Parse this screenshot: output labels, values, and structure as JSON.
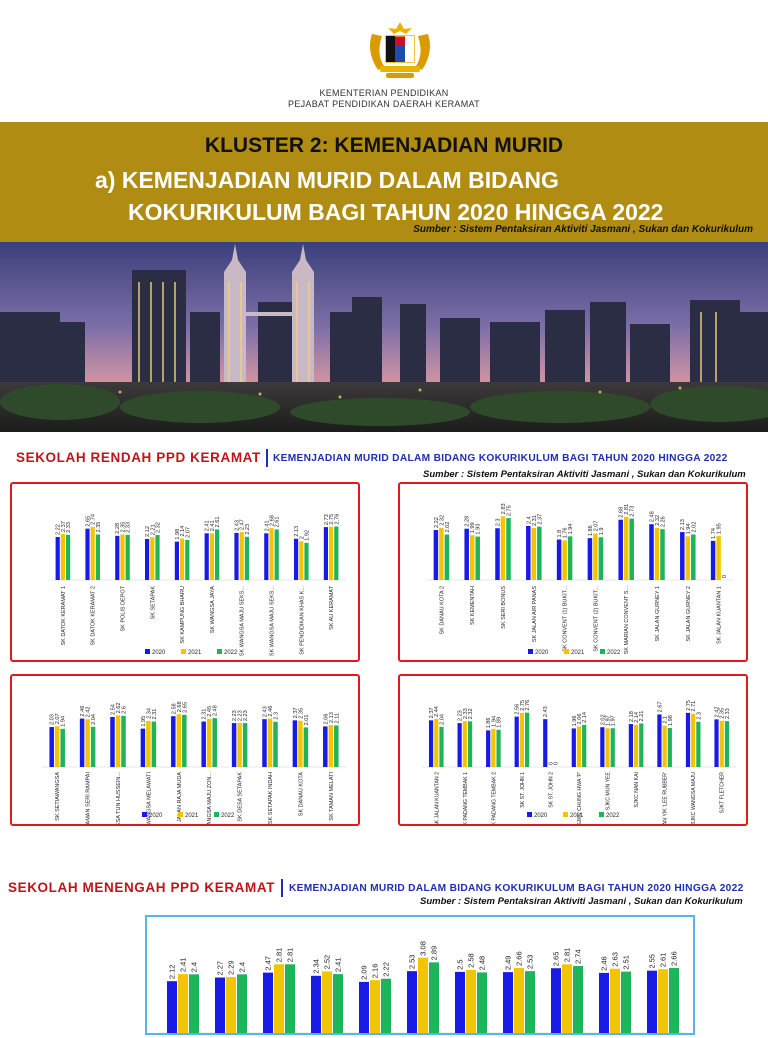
{
  "header": {
    "line1": "KEMENTERIAN PENDIDIKAN",
    "line2": "PEJABAT PENDIDIKAN DAERAH KERAMAT"
  },
  "banner": {
    "kluster": "KLUSTER 2: KEMENJADIAN MURID",
    "subtitle_line1": "a) KEMENJADIAN MURID DALAM BIDANG",
    "subtitle_line2": "KOKURIKULUM BAGI TAHUN 2020 HINGGA 2022",
    "source": "Sumber : Sistem Pentaksiran Aktiviti Jasmani , Sukan dan Kokurikulum"
  },
  "sections": [
    {
      "title": "SEKOLAH RENDAH PPD KERAMAT",
      "subtitle": "KEMENJADIAN MURID DALAM BIDANG KOKURIKULUM BAGI TAHUN 2020 HINGGA 2022",
      "source": "Sumber : Sistem Pentaksiran Aktiviti Jasmani , Sukan dan Kokurikulum"
    },
    {
      "title": "SEKOLAH MENENGAH PPD KERAMAT",
      "subtitle": "KEMENJADIAN MURID DALAM BIDANG KOKURIKULUM BAGI TAHUN 2020 HINGGA 2022",
      "source": "Sumber : Sistem Pentaksiran Aktiviti Jasmani , Sukan dan Kokurikulum"
    }
  ],
  "colors": {
    "2020": "#1a1ae6",
    "2021": "#f2c500",
    "2022": "#1fb35a",
    "red_border": "#e0191f",
    "blue_border": "#5ab4e6"
  },
  "chart_data": [
    {
      "type": "bar",
      "categories": [
        "SK DATOK KERAMAT 1",
        "SK DATOK KERAMAT 2",
        "SK POLIS DEPOT",
        "SK SETAPAK",
        "SK KAMPUNG BHARU",
        "SK WANGSA JAYA",
        "SK WANGSA MAJU SEKS...",
        "SK WANGSA MAJU SEKS...",
        "SK PENDIDIKAN KHAS K...",
        "SK AU KERAMAT"
      ],
      "series": [
        {
          "name": "2020",
          "values": [
            2.22,
            2.65,
            2.28,
            2.12,
            1.98,
            2.41,
            2.43,
            2.41,
            2.13,
            2.73
          ]
        },
        {
          "name": "2021",
          "values": [
            2.37,
            2.74,
            2.35,
            2.21,
            2.14,
            2.41,
            2.47,
            2.68,
            2.0,
            2.75
          ]
        },
        {
          "name": "2022",
          "values": [
            2.33,
            2.35,
            2.33,
            2.32,
            2.07,
            2.61,
            2.23,
            2.61,
            1.92,
            2.76
          ]
        }
      ]
    },
    {
      "type": "bar",
      "categories": [
        "SK DANAU KOTA 2",
        "SK KEMENTAH",
        "SK SERI BONUS",
        "SK JALAN AIR PANAS",
        "SK CONVENT (1) BUKIT...",
        "SK CONVENT (2) BUKIT...",
        "SK MARIAN CONVENT S...",
        "SK JALAN GURNEY 1",
        "SK JALAN GURNEY 2",
        "SK JALAN KUANTAN 1"
      ],
      "series": [
        {
          "name": "2020",
          "values": [
            2.22,
            2.28,
            2.3,
            2.4,
            1.8,
            1.86,
            2.68,
            2.48,
            2.13,
            1.74
          ]
        },
        {
          "name": "2021",
          "values": [
            2.32,
            1.99,
            2.83,
            2.31,
            1.76,
            2.07,
            2.81,
            2.32,
            1.94,
            1.95
          ]
        },
        {
          "name": "2022",
          "values": [
            2.02,
            1.93,
            2.75,
            2.37,
            1.94,
            1.9,
            2.73,
            2.26,
            2.02,
            0
          ]
        }
      ]
    },
    {
      "type": "bar",
      "categories": [
        "SK SETIAWANGSA",
        "SK TAMAN SERI RAMPAI",
        "SK DESA TUN HUSSEIN...",
        "SK WANGSA MELAWATI",
        "SK JALAN RAJA MUDA",
        "SK WANGSA MAJU ZON...",
        "SK DESA SETAPAK",
        "SK SETAPAK INDAH",
        "SK DANAU KOTA",
        "SK TAMAN MELATI"
      ],
      "series": [
        {
          "name": "2020",
          "values": [
            2.03,
            2.46,
            2.54,
            1.95,
            2.58,
            2.31,
            2.23,
            2.43,
            2.37,
            2.06
          ]
        },
        {
          "name": "2021",
          "values": [
            2.07,
            2.42,
            2.62,
            2.34,
            2.68,
            2.45,
            2.23,
            2.46,
            2.35,
            2.13
          ]
        },
        {
          "name": "2022",
          "values": [
            1.94,
            2.04,
            2.6,
            2.31,
            2.65,
            2.48,
            2.23,
            2.3,
            2.01,
            2.11
          ]
        }
      ]
    },
    {
      "type": "bar",
      "categories": [
        "SK JALAN KUANTAN 2",
        "SK PADANG TEMBAK 1",
        "SK PADANG TEMBAK 2",
        "SK ST. JOHN 1",
        "SK ST. JOHN 2",
        "SJKC CHUNG HWA 'P'",
        "SJKC MUN YEE",
        "SJKC NAN KAI",
        "SJKC NAN YIK 'LEE RUBBER'",
        "SJKC WANGSA MAJU",
        "SJKT FLETCHER"
      ],
      "series": [
        {
          "name": "2020",
          "values": [
            2.37,
            2.23,
            1.86,
            2.56,
            2.43,
            1.96,
            2.02,
            2.18,
            2.67,
            2.75,
            2.42
          ]
        },
        {
          "name": "2021",
          "values": [
            2.44,
            2.33,
            1.94,
            2.75,
            0,
            2.06,
            1.97,
            2.14,
            2.1,
            2.71,
            2.35
          ]
        },
        {
          "name": "2022",
          "values": [
            2.04,
            2.32,
            1.89,
            2.76,
            0,
            2.14,
            1.97,
            2.21,
            1.98,
            2.3,
            2.33
          ]
        }
      ]
    },
    {
      "type": "bar",
      "categories": [
        "",
        "",
        "",
        "",
        "",
        "",
        "",
        "",
        "",
        "",
        ""
      ],
      "series": [
        {
          "name": "2020",
          "values": [
            2.12,
            2.27,
            2.47,
            2.34,
            2.09,
            2.53,
            2.5,
            2.49,
            2.65,
            2.46,
            2.55
          ]
        },
        {
          "name": "2021",
          "values": [
            2.41,
            2.29,
            2.81,
            2.52,
            2.16,
            3.08,
            2.58,
            2.66,
            2.81,
            2.63,
            2.61
          ]
        },
        {
          "name": "2022",
          "values": [
            2.4,
            2.4,
            2.81,
            2.41,
            2.22,
            2.89,
            2.48,
            2.53,
            2.74,
            2.51,
            2.66
          ]
        }
      ]
    }
  ]
}
